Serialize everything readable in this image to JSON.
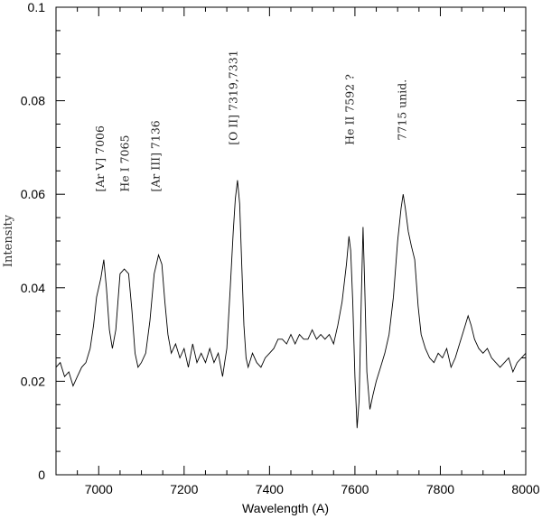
{
  "chart_data": {
    "type": "line",
    "title": "",
    "xlabel": "Wavelength (A)",
    "ylabel": "Intensity",
    "xlim": [
      6900,
      8000
    ],
    "ylim": [
      0,
      0.1
    ],
    "grid": false,
    "x_ticks": [
      {
        "value": 7000,
        "label": "7000"
      },
      {
        "value": 7200,
        "label": "7200"
      },
      {
        "value": 7400,
        "label": "7400"
      },
      {
        "value": 7600,
        "label": "7600"
      },
      {
        "value": 7800,
        "label": "7800"
      },
      {
        "value": 8000,
        "label": "8000"
      }
    ],
    "y_ticks": [
      {
        "value": 0,
        "label": "0"
      },
      {
        "value": 0.02,
        "label": "0.02"
      },
      {
        "value": 0.04,
        "label": "0.04"
      },
      {
        "value": 0.06,
        "label": "0.06"
      },
      {
        "value": 0.08,
        "label": "0.08"
      },
      {
        "value": 0.1,
        "label": "0.1"
      }
    ],
    "annotations": [
      {
        "text": "[Ar V]  7006",
        "x": 7012,
        "y": 0.0605
      },
      {
        "text": "He I 7065",
        "x": 7070,
        "y": 0.0605
      },
      {
        "text": "[Ar III]  7136",
        "x": 7142,
        "y": 0.0605
      },
      {
        "text": "[O II]  7319,7331",
        "x": 7324,
        "y": 0.0705
      },
      {
        "text": "He II 7592 ?",
        "x": 7597,
        "y": 0.0705
      },
      {
        "text": "7715  unid.",
        "x": 7720,
        "y": 0.0715
      }
    ],
    "series": [
      {
        "color": "#000000",
        "points": [
          [
            6900,
            0.023
          ],
          [
            6910,
            0.024
          ],
          [
            6920,
            0.021
          ],
          [
            6930,
            0.022
          ],
          [
            6940,
            0.019
          ],
          [
            6950,
            0.021
          ],
          [
            6960,
            0.023
          ],
          [
            6970,
            0.024
          ],
          [
            6980,
            0.027
          ],
          [
            6988,
            0.032
          ],
          [
            6995,
            0.038
          ],
          [
            7005,
            0.042
          ],
          [
            7012,
            0.046
          ],
          [
            7018,
            0.04
          ],
          [
            7025,
            0.031
          ],
          [
            7032,
            0.027
          ],
          [
            7040,
            0.031
          ],
          [
            7050,
            0.043
          ],
          [
            7060,
            0.044
          ],
          [
            7070,
            0.043
          ],
          [
            7078,
            0.035
          ],
          [
            7085,
            0.026
          ],
          [
            7092,
            0.023
          ],
          [
            7100,
            0.024
          ],
          [
            7110,
            0.026
          ],
          [
            7120,
            0.033
          ],
          [
            7130,
            0.043
          ],
          [
            7140,
            0.047
          ],
          [
            7148,
            0.045
          ],
          [
            7155,
            0.037
          ],
          [
            7162,
            0.03
          ],
          [
            7170,
            0.026
          ],
          [
            7180,
            0.028
          ],
          [
            7190,
            0.025
          ],
          [
            7200,
            0.027
          ],
          [
            7210,
            0.023
          ],
          [
            7220,
            0.028
          ],
          [
            7230,
            0.024
          ],
          [
            7240,
            0.026
          ],
          [
            7250,
            0.024
          ],
          [
            7260,
            0.027
          ],
          [
            7270,
            0.024
          ],
          [
            7280,
            0.026
          ],
          [
            7290,
            0.021
          ],
          [
            7295,
            0.024
          ],
          [
            7300,
            0.027
          ],
          [
            7308,
            0.04
          ],
          [
            7315,
            0.052
          ],
          [
            7320,
            0.059
          ],
          [
            7325,
            0.063
          ],
          [
            7330,
            0.058
          ],
          [
            7335,
            0.045
          ],
          [
            7340,
            0.032
          ],
          [
            7345,
            0.025
          ],
          [
            7350,
            0.023
          ],
          [
            7360,
            0.026
          ],
          [
            7370,
            0.024
          ],
          [
            7380,
            0.023
          ],
          [
            7390,
            0.025
          ],
          [
            7400,
            0.026
          ],
          [
            7410,
            0.027
          ],
          [
            7420,
            0.029
          ],
          [
            7430,
            0.029
          ],
          [
            7440,
            0.028
          ],
          [
            7450,
            0.03
          ],
          [
            7460,
            0.028
          ],
          [
            7470,
            0.03
          ],
          [
            7480,
            0.029
          ],
          [
            7490,
            0.029
          ],
          [
            7500,
            0.031
          ],
          [
            7510,
            0.029
          ],
          [
            7520,
            0.03
          ],
          [
            7530,
            0.029
          ],
          [
            7540,
            0.03
          ],
          [
            7550,
            0.028
          ],
          [
            7560,
            0.032
          ],
          [
            7570,
            0.037
          ],
          [
            7580,
            0.045
          ],
          [
            7586,
            0.051
          ],
          [
            7590,
            0.048
          ],
          [
            7595,
            0.037
          ],
          [
            7600,
            0.021
          ],
          [
            7605,
            0.01
          ],
          [
            7610,
            0.016
          ],
          [
            7615,
            0.038
          ],
          [
            7619,
            0.053
          ],
          [
            7623,
            0.04
          ],
          [
            7628,
            0.022
          ],
          [
            7635,
            0.014
          ],
          [
            7642,
            0.017
          ],
          [
            7650,
            0.02
          ],
          [
            7660,
            0.023
          ],
          [
            7670,
            0.026
          ],
          [
            7680,
            0.03
          ],
          [
            7690,
            0.038
          ],
          [
            7700,
            0.05
          ],
          [
            7708,
            0.057
          ],
          [
            7713,
            0.06
          ],
          [
            7718,
            0.057
          ],
          [
            7725,
            0.052
          ],
          [
            7732,
            0.049
          ],
          [
            7740,
            0.046
          ],
          [
            7748,
            0.036
          ],
          [
            7755,
            0.03
          ],
          [
            7765,
            0.027
          ],
          [
            7775,
            0.025
          ],
          [
            7785,
            0.024
          ],
          [
            7795,
            0.026
          ],
          [
            7805,
            0.025
          ],
          [
            7815,
            0.027
          ],
          [
            7825,
            0.023
          ],
          [
            7835,
            0.025
          ],
          [
            7845,
            0.028
          ],
          [
            7855,
            0.031
          ],
          [
            7865,
            0.034
          ],
          [
            7872,
            0.032
          ],
          [
            7880,
            0.029
          ],
          [
            7890,
            0.027
          ],
          [
            7900,
            0.026
          ],
          [
            7910,
            0.027
          ],
          [
            7920,
            0.025
          ],
          [
            7930,
            0.024
          ],
          [
            7940,
            0.023
          ],
          [
            7950,
            0.024
          ],
          [
            7960,
            0.025
          ],
          [
            7970,
            0.022
          ],
          [
            7980,
            0.024
          ],
          [
            7990,
            0.025
          ],
          [
            8000,
            0.026
          ]
        ]
      }
    ]
  }
}
